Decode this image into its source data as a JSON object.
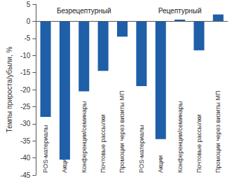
{
  "chart_data": {
    "type": "bar",
    "y_label": "Темпы прироста/убыли, %",
    "annotations": [
      "Безрецептурный",
      "Рецептурный"
    ],
    "categories": [
      "POS-материалы",
      "Акции",
      "Конференции/семинары",
      "Почтовые рассылки",
      "Промоции через визиты МП",
      "POS-материалы",
      "Акции",
      "Конференции/семинары",
      "Почтовые рассылки",
      "Промоции через визиты МП"
    ],
    "values": [
      -28,
      -40.5,
      -20.5,
      -14.5,
      -4.5,
      -19,
      -34.5,
      0.5,
      -8.5,
      2
    ],
    "color": "#1f5fa8",
    "ylim": [
      -45,
      5
    ],
    "yticks": [
      -45,
      -40,
      -35,
      -30,
      -25,
      -20,
      -15,
      -10,
      -5,
      0,
      5
    ],
    "grid": false
  }
}
